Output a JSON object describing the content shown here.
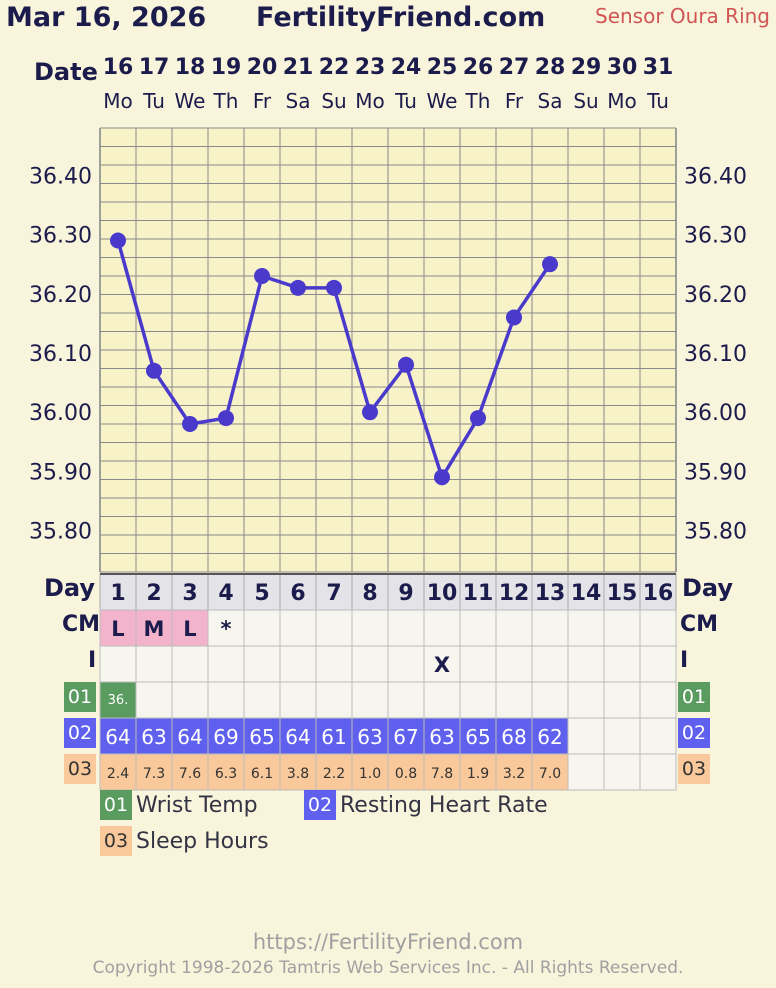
{
  "header": {
    "date": "Mar 16, 2026",
    "site": "FertilityFriend.com",
    "sensor": "Sensor Oura Ring"
  },
  "labels": {
    "date": "Date",
    "day": "Day",
    "cm": "CM",
    "intercourse": "I"
  },
  "colors": {
    "background": "#f9f4dc",
    "line": "#4a3acc",
    "cm_menses": "#f2b3cb",
    "wrist_temp": "#5a9b5f",
    "resting_heart_rate": "#6060ee",
    "sleep_hours": "#f9c89b"
  },
  "chart_data": {
    "type": "line",
    "title": "",
    "xlabel": "Date",
    "ylabel": "",
    "dates": [
      "16",
      "17",
      "18",
      "19",
      "20",
      "21",
      "22",
      "23",
      "24",
      "25",
      "26",
      "27",
      "28",
      "29",
      "30",
      "31"
    ],
    "weekdays": [
      "Mo",
      "Tu",
      "We",
      "Th",
      "Fr",
      "Sa",
      "Su",
      "Mo",
      "Tu",
      "We",
      "Th",
      "Fr",
      "Sa",
      "Su",
      "Mo",
      "Tu"
    ],
    "cycle_days": [
      "1",
      "2",
      "3",
      "4",
      "5",
      "6",
      "7",
      "8",
      "9",
      "10",
      "11",
      "12",
      "13",
      "14",
      "15",
      "16"
    ],
    "series": [
      {
        "values": [
          36.29,
          36.07,
          35.98,
          35.99,
          36.23,
          36.21,
          36.21,
          36.0,
          36.08,
          35.89,
          35.99,
          36.16,
          36.25,
          null,
          null,
          null
        ]
      }
    ],
    "yticks": [
      "36.40",
      "36.30",
      "36.20",
      "36.10",
      "36.00",
      "35.90",
      "35.80"
    ],
    "ylim": [
      35.73,
      36.48
    ],
    "grid": true
  },
  "rows": {
    "cm": [
      "L",
      "M",
      "L",
      "*",
      "",
      "",
      "",
      "",
      "",
      "",
      "",
      "",
      "",
      "",
      "",
      ""
    ],
    "intercourse": [
      "",
      "",
      "",
      "",
      "",
      "",
      "",
      "",
      "",
      "X",
      "",
      "",
      "",
      "",
      "",
      ""
    ],
    "wrist_temp": [
      "36.",
      "",
      "",
      "",
      "",
      "",
      "",
      "",
      "",
      "",
      "",
      "",
      "",
      "",
      "",
      ""
    ],
    "resting_heart_rate": [
      "64",
      "63",
      "64",
      "69",
      "65",
      "64",
      "61",
      "63",
      "67",
      "63",
      "65",
      "68",
      "62",
      "",
      "",
      ""
    ],
    "sleep_hours": [
      "2.4",
      "7.3",
      "7.6",
      "6.3",
      "6.1",
      "3.8",
      "2.2",
      "1.0",
      "0.8",
      "7.8",
      "1.9",
      "3.2",
      "7.0",
      "",
      "",
      ""
    ]
  },
  "legend": [
    {
      "code": "01",
      "label": "Wrist Temp"
    },
    {
      "code": "02",
      "label": "Resting Heart Rate"
    },
    {
      "code": "03",
      "label": "Sleep Hours"
    }
  ],
  "footer": {
    "url": "https://FertilityFriend.com",
    "copyright": "Copyright 1998-2026 Tamtris Web Services Inc. - All Rights Reserved."
  }
}
